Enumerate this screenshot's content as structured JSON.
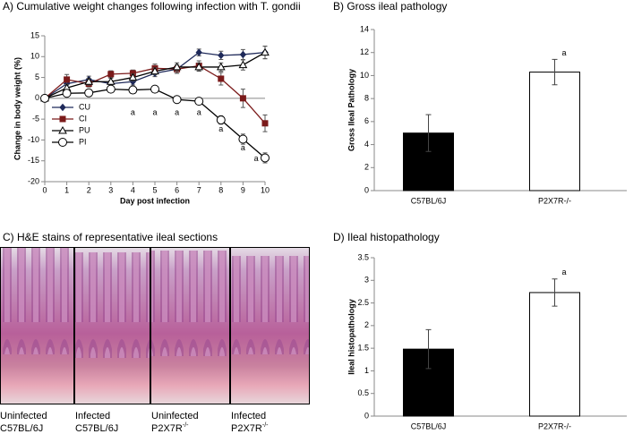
{
  "chart_data": [
    {
      "type": "line",
      "title": "A) Cumulative weight changes following infection with T. gondii",
      "x_label": "Day post infection",
      "y_label": "Change in body weight (%)",
      "x": [
        0,
        1,
        2,
        3,
        4,
        5,
        6,
        7,
        8,
        9,
        10
      ],
      "xlim": [
        0,
        10
      ],
      "xticks": [
        0,
        1,
        2,
        3,
        4,
        5,
        6,
        7,
        8,
        9,
        10
      ],
      "ylim": [
        -20,
        15
      ],
      "yticks": [
        -20,
        -15,
        -10,
        -5,
        0,
        5,
        10,
        15
      ],
      "legend": "lower left",
      "series": [
        {
          "name": "CU",
          "color": "#1f2a5a",
          "marker": "diamond",
          "values": [
            0,
            3.5,
            4.5,
            3.5,
            4,
            6,
            7,
            11,
            10.3,
            10.5,
            11
          ],
          "errors": [
            0,
            0.8,
            0.8,
            0.8,
            0.8,
            0.8,
            1,
            0.8,
            1,
            1.2,
            1.5
          ]
        },
        {
          "name": "CI",
          "color": "#7b1a1a",
          "marker": "square",
          "values": [
            0,
            4.5,
            3.5,
            5.8,
            6,
            7.2,
            7,
            7.8,
            4.7,
            0,
            -6
          ],
          "errors": [
            0,
            1.2,
            0.8,
            0.8,
            0.8,
            1,
            1,
            1.2,
            1.5,
            2.2,
            2
          ]
        },
        {
          "name": "PU",
          "color": "#000000",
          "marker": "triangle",
          "values": [
            0,
            2.5,
            4,
            4,
            5,
            6.5,
            7.5,
            7.5,
            7.5,
            8,
            11
          ],
          "errors": [
            0,
            0.8,
            0.8,
            0.8,
            0.8,
            0.8,
            1,
            1,
            1,
            1.2,
            1.5
          ]
        },
        {
          "name": "PI",
          "color": "#000000",
          "marker": "circle",
          "values": [
            0,
            1.2,
            1.3,
            2.2,
            2,
            2.2,
            -0.3,
            -0.7,
            -5.2,
            -9.8,
            -14.3
          ],
          "errors": [
            0,
            0.8,
            0.6,
            0.6,
            0.6,
            0.6,
            0.6,
            0.8,
            1,
            1.2,
            1.2
          ]
        }
      ],
      "annotations": [
        {
          "text": "a",
          "x": 4,
          "y": -3.5
        },
        {
          "text": "a",
          "x": 5,
          "y": -3.5
        },
        {
          "text": "a",
          "x": 6,
          "y": -3.5
        },
        {
          "text": "a",
          "x": 7,
          "y": -3.5
        },
        {
          "text": "a",
          "x": 8,
          "y": -7.5
        },
        {
          "text": "a",
          "x": 9,
          "y": -12
        },
        {
          "text": "a",
          "x": 9.6,
          "y": -14.5
        }
      ]
    },
    {
      "type": "bar",
      "title": "B) Gross ileal pathology",
      "y_label": "Gross Ileal Pathology",
      "categories": [
        "C57BL/6J",
        "P2X7R-/-"
      ],
      "values": [
        5,
        10.3
      ],
      "errors": [
        1.6,
        1.1
      ],
      "colors": [
        "#000000",
        "#ffffff"
      ],
      "ylim": [
        0,
        14
      ],
      "yticks": [
        0,
        2,
        4,
        6,
        8,
        10,
        12,
        14
      ],
      "annotations": [
        {
          "text": "a",
          "category": 1
        }
      ]
    },
    {
      "type": "bar",
      "title": "D) Ileal histopathology",
      "y_label": "Ileal histopathology",
      "categories": [
        "C57BL/6J",
        "P2X7R-/-"
      ],
      "values": [
        1.48,
        2.73
      ],
      "errors": [
        0.43,
        0.3
      ],
      "colors": [
        "#000000",
        "#ffffff"
      ],
      "ylim": [
        0,
        3.5
      ],
      "yticks": [
        0,
        0.5,
        1,
        1.5,
        2,
        2.5,
        3,
        3.5
      ],
      "annotations": [
        {
          "text": "a",
          "category": 1
        }
      ]
    }
  ],
  "panel_c": {
    "title": "C) H&E stains of representative ileal sections",
    "captions": [
      {
        "line1": "Uninfected",
        "base": "C57BL/6J",
        "sup": ""
      },
      {
        "line1": "Infected",
        "base": "C57BL/6J",
        "sup": ""
      },
      {
        "line1": "Uninfected",
        "base": "P2X7R",
        "sup": "-/-"
      },
      {
        "line1": "Infected",
        "base": "P2X7R",
        "sup": "-/-"
      }
    ]
  }
}
